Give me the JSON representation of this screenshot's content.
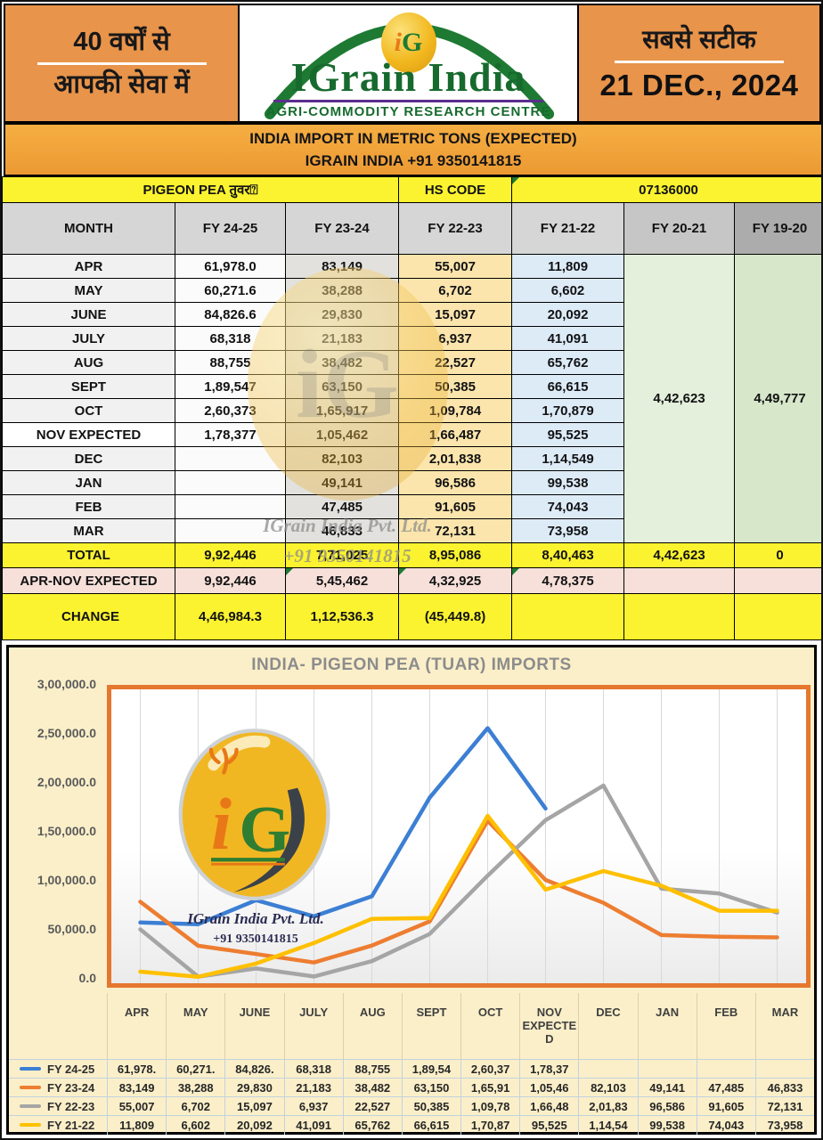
{
  "header": {
    "left_line1": "40 वर्षों से",
    "left_line2": "आपकी सेवा में",
    "logo_monogram_i": "i",
    "logo_monogram_g": "G",
    "logo_title": "IGrain India",
    "logo_subtitle": "AGRI-COMMODITY RESEARCH CENTRE",
    "right_line1": "सबसे सटीक",
    "right_date": "21 DEC., 2024"
  },
  "banner": {
    "line1": "INDIA IMPORT IN METRIC TONS (EXPECTED)",
    "line2": "IGRAIN INDIA +91 9350141815"
  },
  "table": {
    "commodity": "PIGEON PEA तुवर⍰",
    "hs_code_label": "HS CODE",
    "hs_code_value": "07136000",
    "columns": [
      "MONTH",
      "FY 24-25",
      "FY 23-24",
      "FY 22-23",
      "FY 21-22",
      "FY 20-21",
      "FY 19-20"
    ],
    "rows": [
      {
        "month": "APR",
        "values": [
          "61,978.0",
          "83,149",
          "55,007",
          "11,809"
        ]
      },
      {
        "month": "MAY",
        "values": [
          "60,271.6",
          "38,288",
          "6,702",
          "6,602"
        ]
      },
      {
        "month": "JUNE",
        "values": [
          "84,826.6",
          "29,830",
          "15,097",
          "20,092"
        ]
      },
      {
        "month": "JULY",
        "values": [
          "68,318",
          "21,183",
          "6,937",
          "41,091"
        ]
      },
      {
        "month": "AUG",
        "values": [
          "88,755",
          "38,482",
          "22,527",
          "65,762"
        ]
      },
      {
        "month": "SEPT",
        "values": [
          "1,89,547",
          "63,150",
          "50,385",
          "66,615"
        ]
      },
      {
        "month": "OCT",
        "values": [
          "2,60,373",
          "1,65,917",
          "1,09,784",
          "1,70,879"
        ]
      },
      {
        "month": "NOV EXPECTED",
        "values": [
          "1,78,377",
          "1,05,462",
          "1,66,487",
          "95,525"
        ]
      },
      {
        "month": "DEC",
        "values": [
          "",
          "82,103",
          "2,01,838",
          "1,14,549"
        ]
      },
      {
        "month": "JAN",
        "values": [
          "",
          "49,141",
          "96,586",
          "99,538"
        ]
      },
      {
        "month": "FEB",
        "values": [
          "",
          "47,485",
          "91,605",
          "74,043"
        ]
      },
      {
        "month": "MAR",
        "values": [
          "",
          "46,833",
          "72,131",
          "73,958"
        ]
      }
    ],
    "fy2021_merged": "4,42,623",
    "fy1920_merged": "4,49,777",
    "total_row": {
      "label": "TOTAL",
      "values": [
        "9,92,446",
        "7,71,025",
        "8,95,086",
        "8,40,463",
        "4,42,623",
        "0"
      ]
    },
    "aprnov_row": {
      "label": "APR-NOV EXPECTED",
      "values": [
        "9,92,446",
        "5,45,462",
        "4,32,925",
        "4,78,375",
        "",
        ""
      ]
    },
    "change_row": {
      "label": "CHANGE",
      "values": [
        "4,46,984.3",
        "1,12,536.3",
        "(45,449.8)",
        "",
        "",
        ""
      ],
      "value_colors": [
        "green",
        "green",
        "red",
        "",
        "",
        ""
      ]
    }
  },
  "watermark": {
    "monogram": "iG",
    "line1": "IGrain India Pvt. Ltd.",
    "line2": "+91 9350141815"
  },
  "chart_data": {
    "type": "line",
    "title": "INDIA-  PIGEON PEA (TUAR) IMPORTS",
    "categories": [
      "APR",
      "MAY",
      "JUNE",
      "JULY",
      "AUG",
      "SEPT",
      "OCT",
      "NOV EXPECTED",
      "DEC",
      "JAN",
      "FEB",
      "MAR"
    ],
    "ylim": [
      0,
      300000
    ],
    "ytick_labels": [
      "3,00,000.0",
      "2,50,000.0",
      "2,00,000.0",
      "1,50,000.0",
      "1,00,000.0",
      "50,000.0",
      "0.0"
    ],
    "grid": "vertical",
    "legend_position": "bottom-table",
    "series": [
      {
        "name": "FY 24-25",
        "color": "#3C7FD4",
        "values": [
          61978,
          60271.6,
          84826.6,
          68318,
          88755,
          189547,
          260373,
          178377,
          null,
          null,
          null,
          null
        ],
        "display": [
          "61,978.",
          "60,271.",
          "84,826.",
          "68,318",
          "88,755",
          "1,89,54",
          "2,60,37",
          "1,78,37",
          "",
          "",
          "",
          ""
        ]
      },
      {
        "name": "FY 23-24",
        "color": "#ED7D31",
        "values": [
          83149,
          38288,
          29830,
          21183,
          38482,
          63150,
          165917,
          105462,
          82103,
          49141,
          47485,
          46833
        ],
        "display": [
          "83,149",
          "38,288",
          "29,830",
          "21,183",
          "38,482",
          "63,150",
          "1,65,91",
          "1,05,46",
          "82,103",
          "49,141",
          "47,485",
          "46,833"
        ]
      },
      {
        "name": "FY 22-23",
        "color": "#A5A5A5",
        "values": [
          55007,
          6702,
          15097,
          6937,
          22527,
          50385,
          109784,
          166487,
          201838,
          96586,
          91605,
          72131
        ],
        "display": [
          "55,007",
          "6,702",
          "15,097",
          "6,937",
          "22,527",
          "50,385",
          "1,09,78",
          "1,66,48",
          "2,01,83",
          "96,586",
          "91,605",
          "72,131"
        ]
      },
      {
        "name": "FY 21-22",
        "color": "#FFC000",
        "values": [
          11809,
          6602,
          20092,
          41091,
          65762,
          66615,
          170879,
          95525,
          114549,
          99538,
          74043,
          73958
        ],
        "display": [
          "11,809",
          "6,602",
          "20,092",
          "41,091",
          "65,762",
          "66,615",
          "1,70,87",
          "95,525",
          "1,14,54",
          "99,538",
          "74,043",
          "73,958"
        ]
      }
    ],
    "logo_caption_line1": "IGrain India Pvt. Ltd.",
    "logo_caption_line2": "+91 9350141815"
  }
}
